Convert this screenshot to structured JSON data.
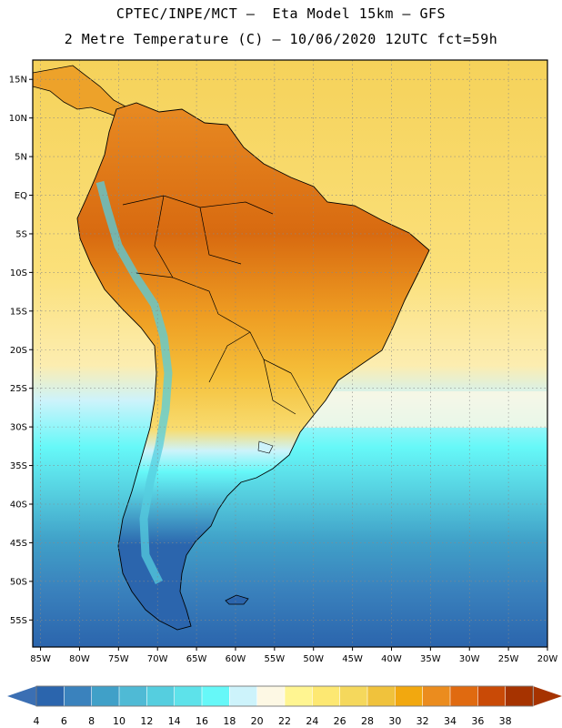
{
  "header": {
    "line1": "CPTEC/INPE/MCT –  Eta Model 15km – GFS",
    "line2": "2 Metre Temperature (C) – 10/06/2020 12UTC fct=59h"
  },
  "map": {
    "lat_labels": [
      "15N",
      "10N",
      "5N",
      "EQ",
      "5S",
      "10S",
      "15S",
      "20S",
      "25S",
      "30S",
      "35S",
      "40S",
      "45S",
      "50S",
      "55S"
    ],
    "lon_labels": [
      "85W",
      "80W",
      "75W",
      "70W",
      "65W",
      "60W",
      "55W",
      "50W",
      "45W",
      "40W",
      "35W",
      "30W",
      "25W",
      "20W"
    ],
    "lat_range": [
      17.5,
      -58.5
    ],
    "lon_range": [
      -86,
      -20
    ]
  },
  "colorbar": {
    "labels": [
      "4",
      "6",
      "8",
      "10",
      "12",
      "14",
      "16",
      "18",
      "20",
      "22",
      "24",
      "26",
      "28",
      "30",
      "32",
      "34",
      "36",
      "38"
    ],
    "colors": [
      "#2b65ad",
      "#3a82bd",
      "#40a0c8",
      "#4fbad5",
      "#55cedf",
      "#5de2ea",
      "#66f8f8",
      "#cdf3fb",
      "#fdf8e4",
      "#fff591",
      "#fde872",
      "#f5d85c",
      "#f0c23c",
      "#f2a80f",
      "#eb8c1e",
      "#e06a10",
      "#c94a06",
      "#a63300"
    ],
    "under_color": "#3b6fb3",
    "over_color": "#a63300"
  }
}
